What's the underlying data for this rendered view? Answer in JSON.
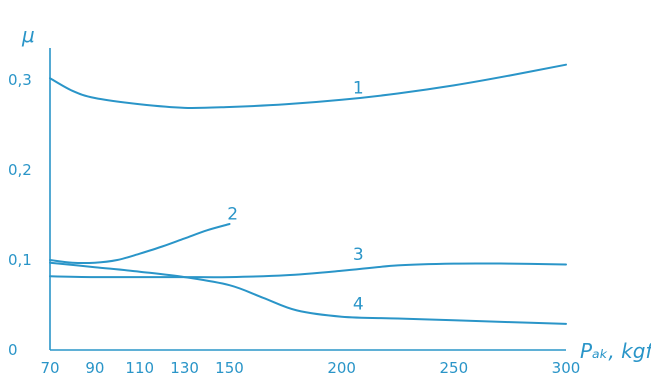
{
  "chart_data": {
    "type": "line",
    "xlabel": "Pₐₖ, kgf",
    "ylabel": "μ",
    "xlim": [
      70,
      300
    ],
    "ylim": [
      0,
      0.32
    ],
    "grid": false,
    "x_ticks": [
      {
        "value": 70,
        "label": "70"
      },
      {
        "value": 90,
        "label": "90"
      },
      {
        "value": 110,
        "label": "110"
      },
      {
        "value": 130,
        "label": "130"
      },
      {
        "value": 150,
        "label": "150"
      },
      {
        "value": 200,
        "label": "200"
      },
      {
        "value": 250,
        "label": "250"
      },
      {
        "value": 300,
        "label": "300"
      }
    ],
    "y_ticks": [
      {
        "value": 0,
        "label": "0"
      },
      {
        "value": 0.1,
        "label": "0,1"
      },
      {
        "value": 0.2,
        "label": "0,2"
      },
      {
        "value": 0.3,
        "label": "0,3"
      }
    ],
    "series": [
      {
        "name": "1",
        "label_at": [
          205,
          0.285
        ],
        "points": [
          [
            70,
            0.302
          ],
          [
            80,
            0.288
          ],
          [
            90,
            0.28
          ],
          [
            110,
            0.273
          ],
          [
            130,
            0.269
          ],
          [
            150,
            0.27
          ],
          [
            175,
            0.273
          ],
          [
            200,
            0.278
          ],
          [
            225,
            0.285
          ],
          [
            250,
            0.294
          ],
          [
            275,
            0.305
          ],
          [
            300,
            0.317
          ]
        ]
      },
      {
        "name": "2",
        "label_at": [
          149,
          0.145
        ],
        "points": [
          [
            70,
            0.1
          ],
          [
            80,
            0.097
          ],
          [
            90,
            0.097
          ],
          [
            100,
            0.1
          ],
          [
            110,
            0.107
          ],
          [
            120,
            0.115
          ],
          [
            130,
            0.124
          ],
          [
            140,
            0.133
          ],
          [
            150,
            0.14
          ]
        ]
      },
      {
        "name": "3",
        "label_at": [
          205,
          0.1
        ],
        "points": [
          [
            70,
            0.082
          ],
          [
            90,
            0.081
          ],
          [
            110,
            0.081
          ],
          [
            130,
            0.081
          ],
          [
            150,
            0.081
          ],
          [
            175,
            0.083
          ],
          [
            200,
            0.088
          ],
          [
            225,
            0.094
          ],
          [
            250,
            0.096
          ],
          [
            275,
            0.096
          ],
          [
            300,
            0.095
          ]
        ]
      },
      {
        "name": "4",
        "label_at": [
          205,
          0.045
        ],
        "points": [
          [
            70,
            0.097
          ],
          [
            90,
            0.092
          ],
          [
            110,
            0.087
          ],
          [
            130,
            0.081
          ],
          [
            150,
            0.072
          ],
          [
            165,
            0.058
          ],
          [
            180,
            0.044
          ],
          [
            200,
            0.037
          ],
          [
            225,
            0.035
          ],
          [
            250,
            0.033
          ],
          [
            275,
            0.031
          ],
          [
            300,
            0.029
          ]
        ]
      }
    ]
  }
}
